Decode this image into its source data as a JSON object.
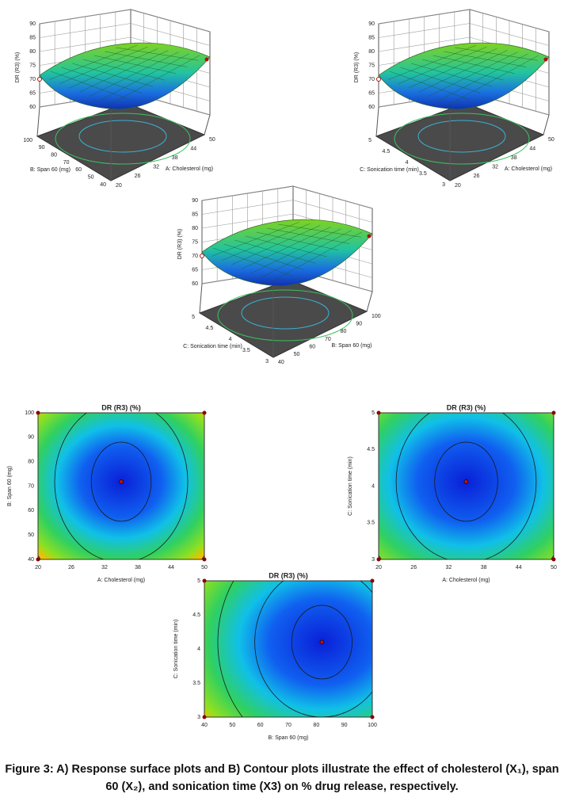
{
  "surface_plots": [
    {
      "zlabel": "DR (R3) (%)",
      "zticks": [
        "60",
        "65",
        "70",
        "75",
        "80",
        "85",
        "90"
      ],
      "axis1_label": "B: Span 60 (mg)",
      "axis1_ticks": [
        "100",
        "90",
        "80",
        "70",
        "60",
        "50",
        "40"
      ],
      "axis2_label": "A: Cholesterol (mg)",
      "axis2_ticks": [
        "20",
        "26",
        "32",
        "38",
        "44",
        "50"
      ]
    },
    {
      "zlabel": "DR (R3) (%)",
      "zticks": [
        "60",
        "65",
        "70",
        "75",
        "80",
        "85",
        "90"
      ],
      "axis1_label": "C: Sonication time (min)",
      "axis1_ticks": [
        "5",
        "4.5",
        "4",
        "3.5",
        "3"
      ],
      "axis2_label": "A: Cholesterol (mg)",
      "axis2_ticks": [
        "20",
        "26",
        "32",
        "38",
        "44",
        "50"
      ]
    },
    {
      "zlabel": "DR (R3) (%)",
      "zticks": [
        "60",
        "65",
        "70",
        "75",
        "80",
        "85",
        "90"
      ],
      "axis1_label": "C: Sonication time (min)",
      "axis1_ticks": [
        "5",
        "4.5",
        "4",
        "3.5",
        "3"
      ],
      "axis2_label": "B: Span 60 (mg)",
      "axis2_ticks": [
        "40",
        "50",
        "60",
        "70",
        "80",
        "90",
        "100"
      ]
    }
  ],
  "contour_plots": [
    {
      "title": "DR (R3) (%)",
      "xlabel": "A: Cholesterol (mg)",
      "xticks": [
        "20",
        "26",
        "32",
        "38",
        "44",
        "50"
      ],
      "ylabel": "B: Span 60 (mg)",
      "yticks": [
        "40",
        "50",
        "60",
        "70",
        "80",
        "90",
        "100"
      ]
    },
    {
      "title": "DR (R3) (%)",
      "xlabel": "A: Cholesterol (mg)",
      "xticks": [
        "20",
        "26",
        "32",
        "38",
        "44",
        "50"
      ],
      "ylabel": "C: Sonication time (min)",
      "yticks": [
        "3",
        "3.5",
        "4",
        "4.5",
        "5"
      ]
    },
    {
      "title": "DR (R3) (%)",
      "xlabel": "B: Span 60 (mg)",
      "xticks": [
        "40",
        "50",
        "60",
        "70",
        "80",
        "90",
        "100"
      ],
      "ylabel": "C: Sonication time (min)",
      "yticks": [
        "3",
        "3.5",
        "4",
        "4.5",
        "5"
      ]
    }
  ],
  "caption": "Figure 3: A) Response surface plots and B) Contour plots illustrate the effect of cholesterol (X₁), span 60 (X₂), and sonication time (X3) on % drug release, respectively."
}
